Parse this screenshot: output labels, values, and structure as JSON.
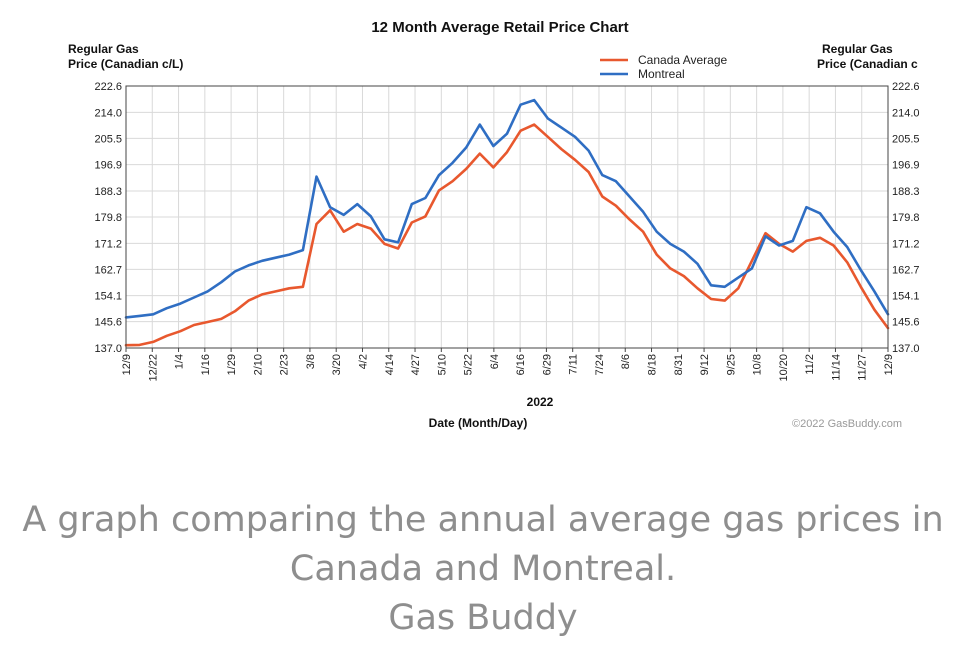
{
  "chart_data": {
    "type": "line",
    "title": "12 Month Average Retail Price Chart",
    "ylabel_left": [
      "Regular Gas",
      "Price (Canadian c/L)"
    ],
    "ylabel_right": [
      "Regular Gas",
      "Price (Canadian c"
    ],
    "xlabel": "Date (Month/Day)",
    "x_group_label": "2022",
    "credit": "©2022 GasBuddy.com",
    "legend_position": "top-right",
    "grid": true,
    "ylim": [
      137.0,
      222.6
    ],
    "yticks": [
      "137.0",
      "145.6",
      "154.1",
      "162.7",
      "171.2",
      "179.8",
      "188.3",
      "196.9",
      "205.5",
      "214.0",
      "222.6"
    ],
    "xticks": [
      "12/9",
      "12/22",
      "1/4",
      "1/16",
      "1/29",
      "2/10",
      "2/23",
      "3/8",
      "3/20",
      "4/2",
      "4/14",
      "4/27",
      "5/10",
      "5/22",
      "6/4",
      "6/16",
      "6/29",
      "7/11",
      "7/24",
      "8/6",
      "8/18",
      "8/31",
      "9/12",
      "9/25",
      "10/8",
      "10/20",
      "11/2",
      "11/14",
      "11/27",
      "12/9"
    ],
    "series": [
      {
        "name": "Canada Average",
        "color": "#e8582e",
        "values": [
          137.9,
          138.0,
          139.0,
          141.0,
          142.5,
          144.5,
          145.5,
          146.5,
          149.0,
          152.5,
          154.5,
          155.5,
          156.5,
          157.0,
          177.5,
          182.0,
          175.0,
          177.5,
          176.0,
          171.0,
          169.5,
          178.0,
          180.0,
          188.5,
          191.5,
          195.5,
          200.5,
          196.0,
          201.0,
          208.0,
          210.0,
          206.0,
          202.0,
          198.5,
          194.5,
          186.5,
          183.5,
          179.0,
          175.0,
          167.5,
          163.0,
          160.5,
          156.5,
          153.0,
          152.5,
          156.5,
          165.5,
          174.5,
          171.0,
          168.5,
          172.0,
          173.0,
          170.5,
          165.0,
          157.0,
          149.5,
          143.5
        ]
      },
      {
        "name": "Montreal",
        "color": "#2f6ec3",
        "values": [
          147.0,
          147.5,
          148.0,
          150.0,
          151.5,
          153.5,
          155.5,
          158.5,
          162.0,
          164.0,
          165.5,
          166.5,
          167.5,
          169.0,
          193.0,
          183.0,
          180.5,
          184.0,
          180.0,
          172.5,
          171.5,
          184.0,
          186.0,
          193.5,
          197.5,
          202.5,
          210.0,
          203.0,
          207.0,
          216.5,
          218.0,
          212.0,
          209.0,
          206.0,
          201.5,
          193.5,
          191.5,
          186.5,
          181.5,
          175.0,
          171.0,
          168.5,
          164.5,
          157.5,
          157.0,
          160.0,
          163.0,
          173.5,
          170.5,
          172.0,
          183.0,
          181.0,
          175.0,
          170.0,
          162.5,
          155.5,
          148.0
        ]
      }
    ]
  },
  "caption": {
    "lines": [
      "A graph comparing the annual average gas prices in",
      "Canada and Montreal.",
      "Gas Buddy"
    ]
  }
}
